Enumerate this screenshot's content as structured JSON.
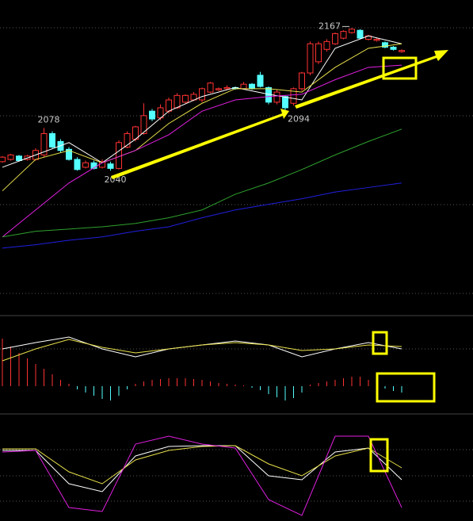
{
  "chart_data": [
    {
      "type": "candlestick",
      "up_color": "#ff3232",
      "down_color": "#54ffff",
      "ylim": [
        1913,
        2192
      ],
      "open": [
        2048,
        2050,
        2053,
        2050,
        2050,
        2054,
        2073,
        2066,
        2059,
        2050,
        2043,
        2047,
        2043,
        2046,
        2042,
        2061,
        2068,
        2073,
        2093,
        2087,
        2093,
        2096,
        2101,
        2103,
        2103,
        2110,
        2112,
        2113,
        2114,
        2113,
        2117,
        2125,
        2114,
        2101,
        2106,
        2100,
        2113,
        2127,
        2137,
        2148,
        2153,
        2158,
        2163,
        2165,
        2157,
        2156,
        2154,
        2150,
        2146
      ],
      "high": [
        2053,
        2055,
        2054,
        2054,
        2060,
        2078,
        2075,
        2068,
        2061,
        2052,
        2049,
        2049,
        2050,
        2048,
        2067,
        2075,
        2080,
        2100,
        2095,
        2099,
        2105,
        2109,
        2108,
        2110,
        2114,
        2119,
        2114,
        2116,
        2115,
        2119,
        2118,
        2128,
        2115,
        2112,
        2107,
        2114,
        2128,
        2155,
        2155,
        2157,
        2163,
        2165,
        2167,
        2166,
        2161,
        2158,
        2155,
        2151,
        2148
      ],
      "low": [
        2047,
        2049,
        2048,
        2049,
        2049,
        2052,
        2060,
        2056,
        2049,
        2040,
        2042,
        2041,
        2042,
        2040,
        2041,
        2060,
        2066,
        2072,
        2084,
        2085,
        2091,
        2095,
        2100,
        2102,
        2101,
        2109,
        2111,
        2112,
        2112,
        2112,
        2112,
        2114,
        2099,
        2099,
        2094,
        2098,
        2111,
        2125,
        2135,
        2146,
        2152,
        2157,
        2162,
        2157,
        2156,
        2155,
        2149,
        2147,
        2145
      ],
      "close": [
        2052,
        2054,
        2049,
        2053,
        2058,
        2073,
        2061,
        2058,
        2050,
        2041,
        2047,
        2042,
        2048,
        2042,
        2065,
        2073,
        2079,
        2089,
        2086,
        2096,
        2103,
        2107,
        2107,
        2108,
        2113,
        2118,
        2113,
        2114,
        2113,
        2117,
        2113,
        2115,
        2101,
        2110,
        2096,
        2113,
        2127,
        2153,
        2153,
        2155,
        2162,
        2164,
        2166,
        2158,
        2160,
        2157,
        2150,
        2148,
        2147
      ],
      "lines": [
        {
          "color": "#ffffff",
          "x": [
            0,
            4,
            8,
            12,
            16,
            20,
            24,
            28,
            32,
            36,
            40,
            44,
            48
          ],
          "values": [
            2043,
            2054,
            2065,
            2047,
            2068,
            2093,
            2106,
            2114,
            2108,
            2103,
            2149,
            2160,
            2153
          ]
        },
        {
          "color": "#e8e04a",
          "x": [
            0,
            4,
            8,
            12,
            16,
            20,
            24,
            28,
            32,
            36,
            40,
            44,
            48
          ],
          "values": [
            2022,
            2050,
            2058,
            2047,
            2058,
            2082,
            2100,
            2113,
            2113,
            2110,
            2132,
            2149,
            2153
          ]
        },
        {
          "color": "#e020e0",
          "x": [
            0,
            4,
            8,
            12,
            16,
            20,
            24,
            28,
            32,
            36,
            40,
            44,
            48
          ],
          "values": [
            1981,
            2005,
            2029,
            2047,
            2058,
            2072,
            2093,
            2103,
            2106,
            2108,
            2121,
            2132,
            2134
          ]
        },
        {
          "color": "#2ea02e",
          "x": [
            0,
            4,
            8,
            12,
            16,
            20,
            24,
            28,
            32,
            36,
            40,
            44,
            48
          ],
          "values": [
            1981,
            1986,
            1988,
            1990,
            1993,
            1998,
            2005,
            2019,
            2029,
            2041,
            2054,
            2066,
            2077
          ]
        },
        {
          "color": "#2020e0",
          "x": [
            0,
            4,
            8,
            12,
            16,
            20,
            24,
            28,
            32,
            36,
            40,
            44,
            48
          ],
          "values": [
            1971,
            1974,
            1978,
            1981,
            1986,
            1990,
            1998,
            2005,
            2010,
            2015,
            2021,
            2025,
            2029
          ]
        }
      ],
      "annotations": [
        {
          "x": 42,
          "value": 2167
        },
        {
          "x": 5,
          "value": 2078
        },
        {
          "x": 34,
          "value": 2094
        },
        {
          "x": 13,
          "value": 2040
        }
      ]
    },
    {
      "type": "bar",
      "up_color": "#ff3232",
      "down_color": "#54ffff",
      "ylim": [
        -35,
        87
      ],
      "values": [
        60,
        50,
        42,
        35,
        28,
        22,
        15,
        8,
        3,
        -4,
        -8,
        -12,
        -16,
        -18,
        -12,
        -4,
        3,
        6,
        8,
        9,
        10,
        10,
        10,
        9,
        8,
        6,
        4,
        3,
        2,
        1,
        -2,
        -5,
        -10,
        -14,
        -18,
        -15,
        -8,
        2,
        4,
        6,
        8,
        10,
        12,
        12,
        8,
        4,
        -3,
        -6,
        -8
      ],
      "lines": [
        {
          "color": "#ffffff",
          "x": [
            0,
            4,
            8,
            12,
            16,
            20,
            24,
            28,
            32,
            36,
            40,
            44,
            48
          ],
          "values": [
            47,
            55,
            62,
            47,
            37,
            47,
            52,
            57,
            52,
            37,
            47,
            55,
            47
          ]
        },
        {
          "color": "#e8e04a",
          "x": [
            0,
            4,
            8,
            12,
            16,
            20,
            24,
            28,
            32,
            36,
            40,
            44,
            48
          ],
          "values": [
            32,
            47,
            59,
            49,
            42,
            47,
            52,
            55,
            52,
            45,
            47,
            52,
            50
          ]
        }
      ]
    },
    {
      "type": "line",
      "ylim": [
        0,
        127
      ],
      "lines": [
        {
          "color": "#ffffff",
          "x": [
            0,
            4,
            8,
            12,
            16,
            20,
            24,
            28,
            32,
            36,
            40,
            44,
            48
          ],
          "values": [
            89,
            89,
            47,
            37,
            82,
            94,
            95,
            95,
            57,
            52,
            87,
            92,
            52
          ]
        },
        {
          "color": "#e8e04a",
          "x": [
            0,
            4,
            8,
            12,
            16,
            20,
            24,
            28,
            32,
            36,
            40,
            44,
            48
          ],
          "values": [
            91,
            91,
            62,
            47,
            77,
            89,
            94,
            95,
            72,
            57,
            82,
            92,
            67
          ]
        },
        {
          "color": "#e020e0",
          "x": [
            0,
            4,
            8,
            12,
            16,
            20,
            24,
            28,
            32,
            36,
            40,
            44,
            48
          ],
          "values": [
            87,
            89,
            17,
            12,
            97,
            107,
            97,
            92,
            27,
            7,
            107,
            107,
            17
          ]
        }
      ]
    }
  ]
}
